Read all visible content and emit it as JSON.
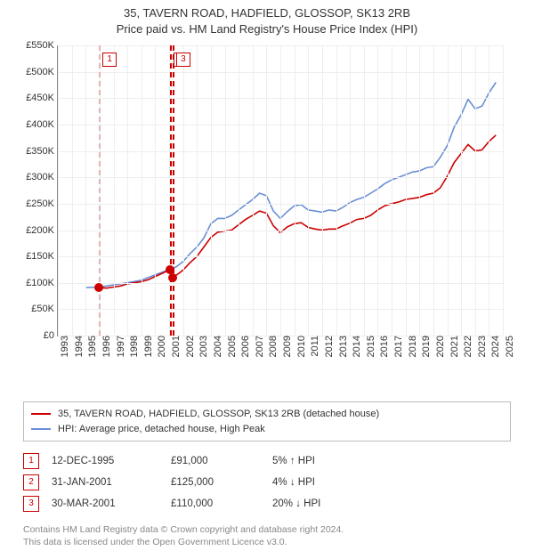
{
  "title1": "35, TAVERN ROAD, HADFIELD, GLOSSOP, SK13 2RB",
  "title2": "Price paid vs. HM Land Registry's House Price Index (HPI)",
  "chart": {
    "type": "line",
    "x_min": 1993,
    "x_max": 2025,
    "y_min": 0,
    "y_max": 550,
    "y_ticks": [
      0,
      50,
      100,
      150,
      200,
      250,
      300,
      350,
      400,
      450,
      500,
      550
    ],
    "y_tick_labels": [
      "£0",
      "£50K",
      "£100K",
      "£150K",
      "£200K",
      "£250K",
      "£300K",
      "£350K",
      "£400K",
      "£450K",
      "£500K",
      "£550K"
    ],
    "x_ticks": [
      1993,
      1994,
      1995,
      1996,
      1997,
      1998,
      1999,
      2000,
      2001,
      2002,
      2003,
      2004,
      2005,
      2006,
      2007,
      2008,
      2009,
      2010,
      2011,
      2012,
      2013,
      2014,
      2015,
      2016,
      2017,
      2018,
      2019,
      2020,
      2021,
      2022,
      2023,
      2024,
      2025
    ],
    "background_color": "#ffffff",
    "grid_color": "#eeeeee",
    "axis_color": "#888888",
    "tick_fontsize": 11,
    "hpi_series": {
      "label": "HPI: Average price, detached house, High Peak",
      "color": "#6a8fd4",
      "width": 1.6,
      "points": [
        [
          1995.0,
          91
        ],
        [
          1996,
          92
        ],
        [
          1997,
          96
        ],
        [
          1998,
          100
        ],
        [
          1999,
          105
        ],
        [
          2000,
          115
        ],
        [
          2001,
          125
        ],
        [
          2001.5,
          130
        ],
        [
          2002,
          140
        ],
        [
          2002.5,
          155
        ],
        [
          2003,
          168
        ],
        [
          2003.5,
          185
        ],
        [
          2004,
          212
        ],
        [
          2004.5,
          222
        ],
        [
          2005,
          222
        ],
        [
          2005.5,
          228
        ],
        [
          2006,
          238
        ],
        [
          2006.5,
          248
        ],
        [
          2007,
          258
        ],
        [
          2007.5,
          270
        ],
        [
          2008,
          265
        ],
        [
          2008.5,
          236
        ],
        [
          2009,
          222
        ],
        [
          2009.5,
          235
        ],
        [
          2010,
          246
        ],
        [
          2010.5,
          248
        ],
        [
          2011,
          238
        ],
        [
          2011.5,
          236
        ],
        [
          2012,
          234
        ],
        [
          2012.5,
          238
        ],
        [
          2013,
          236
        ],
        [
          2013.5,
          243
        ],
        [
          2014,
          252
        ],
        [
          2014.5,
          258
        ],
        [
          2015,
          262
        ],
        [
          2015.5,
          270
        ],
        [
          2016,
          278
        ],
        [
          2016.5,
          288
        ],
        [
          2017,
          295
        ],
        [
          2017.5,
          300
        ],
        [
          2018,
          305
        ],
        [
          2018.5,
          310
        ],
        [
          2019,
          312
        ],
        [
          2019.5,
          318
        ],
        [
          2020,
          320
        ],
        [
          2020.5,
          338
        ],
        [
          2021,
          360
        ],
        [
          2021.5,
          395
        ],
        [
          2022,
          418
        ],
        [
          2022.5,
          448
        ],
        [
          2023,
          430
        ],
        [
          2023.5,
          435
        ],
        [
          2024,
          460
        ],
        [
          2024.5,
          480
        ]
      ]
    },
    "price_series": {
      "label": "35, TAVERN ROAD, HADFIELD, GLOSSOP, SK13 2RB (detached house)",
      "color": "#cc0000",
      "width": 1.6,
      "points": [
        [
          1995.95,
          91
        ],
        [
          1996.5,
          90
        ],
        [
          1997,
          92
        ],
        [
          1997.5,
          94
        ],
        [
          1998,
          98
        ],
        [
          1998.5,
          100
        ],
        [
          1999,
          102
        ],
        [
          1999.5,
          106
        ],
        [
          2000,
          112
        ],
        [
          2000.5,
          118
        ],
        [
          2001.08,
          125
        ],
        [
          2001.25,
          110
        ],
        [
          2001.6,
          116
        ],
        [
          2002,
          124
        ],
        [
          2002.5,
          138
        ],
        [
          2003,
          150
        ],
        [
          2003.5,
          168
        ],
        [
          2004,
          186
        ],
        [
          2004.5,
          196
        ],
        [
          2005,
          198
        ],
        [
          2005.5,
          200
        ],
        [
          2006,
          210
        ],
        [
          2006.5,
          220
        ],
        [
          2007,
          228
        ],
        [
          2007.5,
          236
        ],
        [
          2008,
          232
        ],
        [
          2008.5,
          208
        ],
        [
          2009,
          195
        ],
        [
          2009.5,
          206
        ],
        [
          2010,
          212
        ],
        [
          2010.5,
          214
        ],
        [
          2011,
          205
        ],
        [
          2011.5,
          202
        ],
        [
          2012,
          200
        ],
        [
          2012.5,
          202
        ],
        [
          2013,
          202
        ],
        [
          2013.5,
          208
        ],
        [
          2014,
          213
        ],
        [
          2014.5,
          220
        ],
        [
          2015,
          222
        ],
        [
          2015.5,
          228
        ],
        [
          2016,
          238
        ],
        [
          2016.5,
          246
        ],
        [
          2017,
          250
        ],
        [
          2017.5,
          253
        ],
        [
          2018,
          258
        ],
        [
          2018.5,
          260
        ],
        [
          2019,
          262
        ],
        [
          2019.5,
          267
        ],
        [
          2020,
          270
        ],
        [
          2020.5,
          280
        ],
        [
          2021,
          302
        ],
        [
          2021.5,
          328
        ],
        [
          2022,
          345
        ],
        [
          2022.5,
          362
        ],
        [
          2023,
          350
        ],
        [
          2023.5,
          352
        ],
        [
          2024,
          368
        ],
        [
          2024.5,
          380
        ]
      ]
    },
    "sale_events": [
      {
        "n": "1",
        "year": 1995.95,
        "price": 91,
        "line_color": "#e4b4b4"
      },
      {
        "n": "2",
        "year": 2001.08,
        "price": 125,
        "line_color": "#cc0000"
      },
      {
        "n": "3",
        "year": 2001.25,
        "price": 110,
        "line_color": "#cc0000"
      }
    ],
    "event_box_border": "#cc0000",
    "event_box_text": "#cc0000",
    "sale_dot_color": "#cc0000"
  },
  "legend": {
    "border_color": "#bbbbbb"
  },
  "sales": [
    {
      "n": "1",
      "date": "12-DEC-1995",
      "price": "£91,000",
      "pct": "5% ↑ HPI"
    },
    {
      "n": "2",
      "date": "31-JAN-2001",
      "price": "£125,000",
      "pct": "4% ↓ HPI"
    },
    {
      "n": "3",
      "date": "30-MAR-2001",
      "price": "£110,000",
      "pct": "20% ↓ HPI"
    }
  ],
  "attribution1": "Contains HM Land Registry data © Crown copyright and database right 2024.",
  "attribution2": "This data is licensed under the Open Government Licence v3.0."
}
